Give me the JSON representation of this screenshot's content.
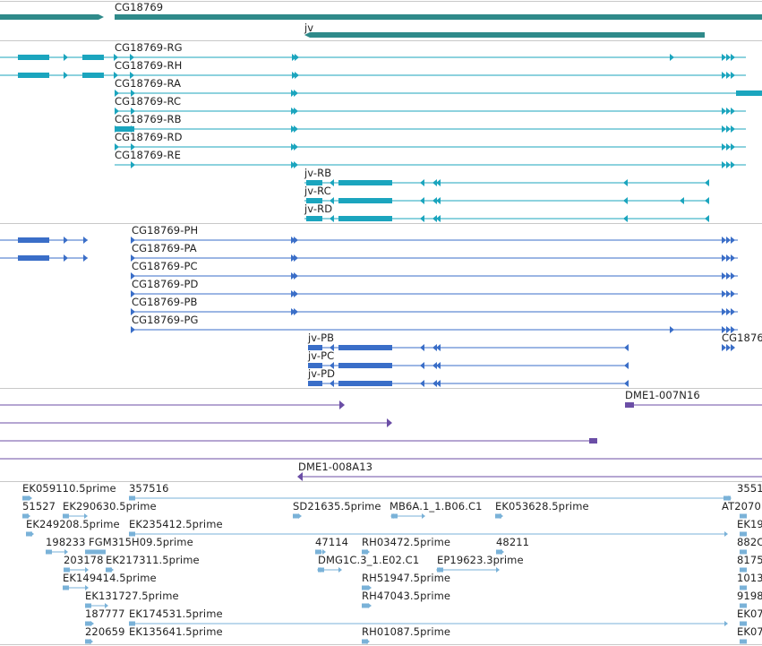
{
  "colors": {
    "gene": "#2f8a8a",
    "transcript": "#1ba5be",
    "protein": "#3a6ec8",
    "clone": "#6b4ea6",
    "est": "#7ab2d8",
    "separator": "#c8c8c8"
  },
  "tracks": {
    "genes": {
      "labels": [
        "CG18769",
        "jv"
      ]
    },
    "transcripts": {
      "labels": [
        "CG18769-RG",
        "CG18769-RH",
        "CG18769-RA",
        "CG18769-RC",
        "CG18769-RB",
        "CG18769-RD",
        "CG18769-RE",
        "jv-RB",
        "jv-RC",
        "jv-RD"
      ]
    },
    "proteins": {
      "labels": [
        "CG18769-PH",
        "CG18769-PA",
        "CG18769-PC",
        "CG18769-PD",
        "CG18769-PB",
        "CG18769-PG",
        "CG1876",
        "jv-PB",
        "jv-PC",
        "jv-PD"
      ]
    },
    "clones": {
      "labels": [
        "DME1-007N16",
        "DME1-008A13"
      ]
    },
    "ests": {
      "labels": [
        "EK059110.5prime",
        "357516",
        "3551",
        "51527",
        "EK290630.5prime",
        "SD21635.5prime",
        "MB6A.1_1.B06.C1",
        "EK053628.5prime",
        "AT2070",
        "EK249208.5prime",
        "EK235412.5prime",
        "EK19",
        "198233",
        "FGM315H09.5prime",
        "47114",
        "RH03472.5prime",
        "48211",
        "882C",
        "203178",
        "EK217311.5prime",
        "DMG1C.3_1.E02.C1",
        "EP19623.3prime",
        "8175",
        "EK149414.5prime",
        "RH51947.5prime",
        "1013",
        "EK131727.5prime",
        "RH47043.5prime",
        "9198",
        "187777",
        "EK174531.5prime",
        "EK07",
        "220659",
        "EK135641.5prime",
        "RH01087.5prime",
        "EK07"
      ]
    }
  }
}
